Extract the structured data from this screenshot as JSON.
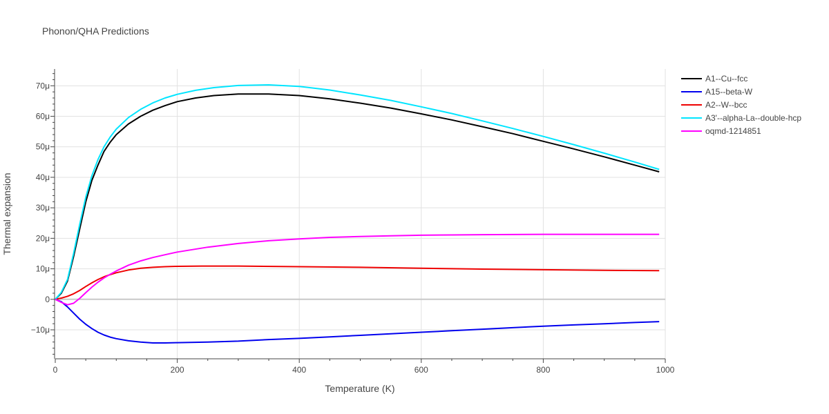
{
  "chart_data": {
    "type": "line",
    "title": "Phonon/QHA Predictions",
    "xlabel": "Temperature (K)",
    "ylabel": "Thermal expansion",
    "xlim": [
      0,
      1000
    ],
    "ylim": [
      -19.5,
      75.5
    ],
    "x_ticks": [
      0,
      200,
      400,
      600,
      800,
      1000
    ],
    "y_ticks": [
      -10,
      0,
      10,
      20,
      30,
      40,
      50,
      60,
      70
    ],
    "y_tick_labels": [
      "−10μ",
      "0",
      "10μ",
      "20μ",
      "30μ",
      "40μ",
      "50μ",
      "60μ",
      "70μ"
    ],
    "grid": true,
    "legend_position": "top-right",
    "series": [
      {
        "name": "A1--Cu--fcc",
        "color": "#000000",
        "x": [
          0,
          10,
          20,
          30,
          40,
          50,
          60,
          70,
          80,
          90,
          100,
          120,
          140,
          160,
          180,
          200,
          230,
          260,
          300,
          350,
          400,
          450,
          500,
          550,
          600,
          650,
          700,
          750,
          800,
          850,
          900,
          950,
          990
        ],
        "y": [
          0,
          2,
          6,
          14,
          23,
          32,
          39,
          44,
          48.5,
          51.5,
          54,
          57.5,
          60,
          62,
          63.5,
          64.8,
          66,
          66.8,
          67.3,
          67.3,
          66.8,
          65.7,
          64.3,
          62.7,
          60.8,
          58.8,
          56.6,
          54.3,
          51.8,
          49.3,
          46.7,
          44,
          41.8
        ]
      },
      {
        "name": "A15--beta-W",
        "color": "#0000ee",
        "x": [
          0,
          10,
          20,
          30,
          40,
          50,
          60,
          70,
          80,
          90,
          100,
          120,
          140,
          160,
          180,
          200,
          250,
          300,
          350,
          400,
          450,
          500,
          550,
          600,
          650,
          700,
          750,
          800,
          850,
          900,
          950,
          990
        ],
        "y": [
          0,
          -0.8,
          -2.5,
          -4.5,
          -6.5,
          -8.2,
          -9.6,
          -10.8,
          -11.7,
          -12.4,
          -12.9,
          -13.6,
          -14.0,
          -14.3,
          -14.3,
          -14.2,
          -14.0,
          -13.7,
          -13.2,
          -12.8,
          -12.3,
          -11.8,
          -11.3,
          -10.8,
          -10.3,
          -9.8,
          -9.3,
          -8.8,
          -8.4,
          -8.0,
          -7.6,
          -7.3
        ]
      },
      {
        "name": "A2--W--bcc",
        "color": "#ee0000",
        "x": [
          0,
          10,
          20,
          30,
          40,
          50,
          60,
          70,
          80,
          90,
          100,
          120,
          140,
          160,
          180,
          200,
          240,
          300,
          400,
          500,
          600,
          700,
          800,
          900,
          990
        ],
        "y": [
          0,
          0.4,
          1.0,
          1.8,
          2.9,
          4.2,
          5.4,
          6.5,
          7.4,
          8.1,
          8.7,
          9.6,
          10.2,
          10.5,
          10.7,
          10.8,
          10.9,
          10.9,
          10.7,
          10.5,
          10.2,
          9.9,
          9.7,
          9.5,
          9.4
        ]
      },
      {
        "name": "A3'--alpha-La--double-hcp",
        "color": "#00e5ff",
        "x": [
          0,
          10,
          20,
          30,
          40,
          50,
          60,
          70,
          80,
          90,
          100,
          120,
          140,
          160,
          180,
          200,
          230,
          260,
          300,
          350,
          400,
          450,
          500,
          550,
          600,
          650,
          700,
          750,
          800,
          850,
          900,
          950,
          990
        ],
        "y": [
          0,
          2.3,
          6.5,
          15,
          24.5,
          33.5,
          40.5,
          45.8,
          50,
          53.2,
          55.8,
          59.6,
          62.3,
          64.4,
          66,
          67.2,
          68.5,
          69.4,
          70.1,
          70.3,
          69.8,
          68.6,
          67,
          65.2,
          63.1,
          60.9,
          58.5,
          56,
          53.4,
          50.7,
          47.9,
          45,
          42.6
        ]
      },
      {
        "name": "oqmd-1214851",
        "color": "#ff00ff",
        "x": [
          0,
          10,
          20,
          30,
          40,
          50,
          60,
          70,
          80,
          90,
          100,
          120,
          140,
          160,
          180,
          200,
          250,
          300,
          350,
          400,
          450,
          500,
          550,
          600,
          650,
          700,
          800,
          900,
          990
        ],
        "y": [
          0,
          -1.0,
          -1.8,
          -1.3,
          0.3,
          2.2,
          4.0,
          5.6,
          7.0,
          8.2,
          9.3,
          11.2,
          12.6,
          13.7,
          14.6,
          15.5,
          17.1,
          18.3,
          19.2,
          19.8,
          20.3,
          20.6,
          20.8,
          21.0,
          21.1,
          21.2,
          21.3,
          21.3,
          21.3
        ]
      }
    ]
  }
}
